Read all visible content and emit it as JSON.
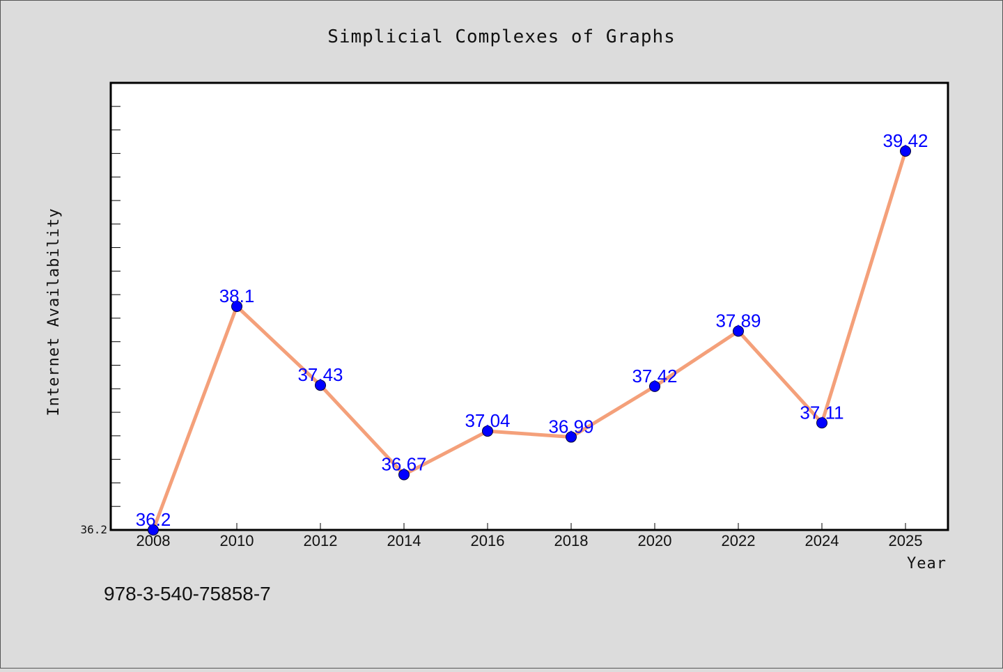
{
  "chart_data": {
    "type": "line",
    "title": "Simplicial Complexes of Graphs",
    "xlabel": "Year",
    "ylabel": "Internet Availability",
    "categories": [
      "2008",
      "2010",
      "2012",
      "2014",
      "2016",
      "2018",
      "2020",
      "2022",
      "2024",
      "2025"
    ],
    "series": [
      {
        "values": [
          36.2,
          38.1,
          37.43,
          36.67,
          37.04,
          36.99,
          37.42,
          37.89,
          37.11,
          39.42
        ],
        "data_labels": [
          "36.2",
          "38.1",
          "37.43",
          "36.67",
          "37.04",
          "36.99",
          "37.42",
          "37.89",
          "37.11",
          "39.42"
        ],
        "line_color": "#f4a07a",
        "marker_color": "#0000ff"
      }
    ],
    "ylim": [
      36.2,
      40.0
    ],
    "y_tick_labels": [
      "36.2"
    ],
    "grid": false,
    "legend": "none",
    "background_color": "#dcdcdc",
    "plot_background_color": "#ffffff"
  },
  "footer": {
    "text": "978-3-540-75858-7"
  }
}
